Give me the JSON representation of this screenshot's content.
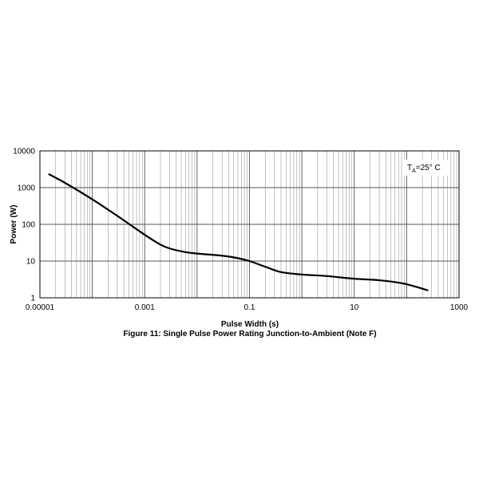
{
  "chart_data": {
    "type": "line",
    "xlabel": "Pulse Width (s)",
    "ylabel": "Power (W)",
    "caption": "Figure 11: Single Pulse Power Rating Junction-to-Ambient (Note F)",
    "annotation": {
      "main": "T",
      "sub": "A",
      "rest": "=25° C"
    },
    "x_scale": "log",
    "y_scale": "log",
    "xlim": [
      1e-05,
      1000
    ],
    "ylim": [
      1,
      10000
    ],
    "x_tick_labels": [
      "0.00001",
      "0.001",
      "0.1",
      "10",
      "1000"
    ],
    "x_tick_values": [
      1e-05,
      0.001,
      0.1,
      10,
      1000
    ],
    "y_tick_labels": [
      "1",
      "10",
      "100",
      "1000",
      "10000"
    ],
    "y_tick_values": [
      1,
      10,
      100,
      1000,
      10000
    ],
    "grid": true,
    "series": [
      {
        "color": "#000000",
        "points": [
          [
            1.5e-05,
            2300
          ],
          [
            3e-05,
            1350
          ],
          [
            0.0001,
            480
          ],
          [
            0.0003,
            170
          ],
          [
            0.001,
            52
          ],
          [
            0.002,
            28
          ],
          [
            0.003,
            22
          ],
          [
            0.006,
            17.5
          ],
          [
            0.01,
            16
          ],
          [
            0.03,
            14
          ],
          [
            0.06,
            12
          ],
          [
            0.1,
            10
          ],
          [
            0.2,
            7
          ],
          [
            0.4,
            5
          ],
          [
            1,
            4.3
          ],
          [
            3,
            3.9
          ],
          [
            10,
            3.3
          ],
          [
            30,
            3.0
          ],
          [
            80,
            2.5
          ],
          [
            150,
            2.0
          ],
          [
            250,
            1.6
          ]
        ]
      }
    ]
  }
}
